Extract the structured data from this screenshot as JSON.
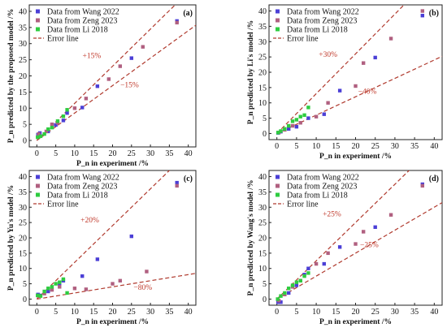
{
  "figure": {
    "title": ""
  },
  "chart_data": [
    {
      "type": "scatter",
      "panel_label": "(a)",
      "xlabel": "P_n in experiment /%",
      "ylabel": "P_n predicted by the proposed model /%",
      "xlim": [
        -2,
        42
      ],
      "ylim": [
        -2,
        42
      ],
      "xticks": [
        0,
        5,
        10,
        15,
        20,
        25,
        30,
        35,
        40
      ],
      "yticks": [
        0,
        5,
        10,
        15,
        20,
        25,
        30,
        35,
        40
      ],
      "legend_position": "top-left",
      "series": [
        {
          "name": "Data from Wang 2022",
          "color": "#4b3fd6",
          "points": [
            [
              0.3,
              1.8
            ],
            [
              0.8,
              2.3
            ],
            [
              3,
              2.8
            ],
            [
              5,
              4.8
            ],
            [
              7,
              6.2
            ],
            [
              8,
              8.5
            ],
            [
              12,
              10.2
            ],
            [
              16,
              16.8
            ],
            [
              25,
              25.5
            ],
            [
              37,
              37
            ]
          ]
        },
        {
          "name": "Data from Zeng 2023",
          "color": "#b06080",
          "points": [
            [
              0.5,
              2
            ],
            [
              2.5,
              2.8
            ],
            [
              4,
              5
            ],
            [
              5.5,
              5.5
            ],
            [
              10,
              10
            ],
            [
              13,
              13
            ],
            [
              19,
              19
            ],
            [
              22,
              23
            ],
            [
              28,
              29
            ],
            [
              37,
              36.5
            ]
          ]
        },
        {
          "name": "Data from Li 2018",
          "color": "#2ecc40",
          "points": [
            [
              0.2,
              1
            ],
            [
              1,
              1.3
            ],
            [
              2,
              2
            ],
            [
              3,
              3.5
            ],
            [
              4,
              4
            ],
            [
              5.5,
              6
            ],
            [
              7,
              7.5
            ],
            [
              8,
              9.5
            ]
          ]
        }
      ],
      "error_lines": {
        "name": "Error line",
        "color": "#b03a2e",
        "upper_slope": 1.15,
        "lower_slope": 0.85,
        "upper_label": "+15%",
        "lower_label": "−15%",
        "upper_label_at": [
          14.5,
          25.5
        ],
        "lower_label_at": [
          24.5,
          16.5
        ]
      }
    },
    {
      "type": "scatter",
      "panel_label": "(b)",
      "xlabel": "P_n in experiment /%",
      "ylabel": "P_n predicted by Li's model /%",
      "xlim": [
        -2,
        42
      ],
      "ylim": [
        -2,
        42
      ],
      "xticks": [
        0,
        5,
        10,
        15,
        20,
        25,
        30,
        35,
        40
      ],
      "yticks": [
        0,
        5,
        10,
        15,
        20,
        25,
        30,
        35,
        40
      ],
      "legend_position": "top-left",
      "series": [
        {
          "name": "Data from Wang 2022",
          "color": "#4b3fd6",
          "points": [
            [
              0.3,
              0.2
            ],
            [
              1,
              0.6
            ],
            [
              3,
              1.5
            ],
            [
              5,
              2.2
            ],
            [
              8,
              5
            ],
            [
              12,
              6.3
            ],
            [
              16,
              14
            ],
            [
              25,
              24.8
            ],
            [
              37,
              38.5
            ]
          ]
        },
        {
          "name": "Data from Zeng 2023",
          "color": "#b06080",
          "points": [
            [
              0.5,
              0.3
            ],
            [
              2,
              1.2
            ],
            [
              4,
              2.5
            ],
            [
              6,
              3.5
            ],
            [
              10,
              5.5
            ],
            [
              13,
              10
            ],
            [
              20,
              15.5
            ],
            [
              22,
              23
            ],
            [
              29,
              31
            ],
            [
              37,
              40
            ]
          ]
        },
        {
          "name": "Data from Li 2018",
          "color": "#2ecc40",
          "points": [
            [
              0.3,
              0.3
            ],
            [
              1,
              0.8
            ],
            [
              2,
              1.5
            ],
            [
              3,
              2.5
            ],
            [
              4,
              4
            ],
            [
              5,
              4.5
            ],
            [
              6,
              5.5
            ],
            [
              7,
              6
            ],
            [
              8,
              8.5
            ]
          ]
        }
      ],
      "error_lines": {
        "name": "Error line",
        "color": "#b03a2e",
        "upper_slope": 1.3,
        "lower_slope": 0.6,
        "upper_label": "+30%",
        "lower_label": "−40%",
        "upper_label_at": [
          13,
          25
        ],
        "lower_label_at": [
          23,
          13
        ]
      }
    },
    {
      "type": "scatter",
      "panel_label": "(c)",
      "xlabel": "P_n in experiment /%",
      "ylabel": "P_n predicted by Yu's model /%",
      "xlim": [
        -2,
        42
      ],
      "ylim": [
        -2,
        42
      ],
      "xticks": [
        0,
        5,
        10,
        15,
        20,
        25,
        30,
        35,
        40
      ],
      "yticks": [
        0,
        5,
        10,
        15,
        20,
        25,
        30,
        35,
        40
      ],
      "legend_position": "top-left",
      "series": [
        {
          "name": "Data from Wang 2022",
          "color": "#4b3fd6",
          "points": [
            [
              0.3,
              1.5
            ],
            [
              0.8,
              1.2
            ],
            [
              3,
              2.5
            ],
            [
              6,
              5
            ],
            [
              7,
              6
            ],
            [
              12,
              7.5
            ],
            [
              16,
              13
            ],
            [
              25,
              20.5
            ],
            [
              37,
              38
            ]
          ]
        },
        {
          "name": "Data from Zeng 2023",
          "color": "#b06080",
          "points": [
            [
              0.5,
              1
            ],
            [
              2,
              1.8
            ],
            [
              4,
              3
            ],
            [
              6,
              4
            ],
            [
              10,
              3.5
            ],
            [
              13,
              3.2
            ],
            [
              20,
              5
            ],
            [
              22,
              6
            ],
            [
              29,
              9
            ],
            [
              37,
              37
            ]
          ]
        },
        {
          "name": "Data from Li 2018",
          "color": "#2ecc40",
          "points": [
            [
              0.2,
              1.2
            ],
            [
              1,
              1
            ],
            [
              2,
              2.5
            ],
            [
              3,
              3.5
            ],
            [
              4,
              4
            ],
            [
              5,
              5
            ],
            [
              6,
              5.5
            ],
            [
              7,
              6.5
            ],
            [
              8,
              2
            ]
          ]
        }
      ],
      "error_lines": {
        "name": "Error line",
        "color": "#b03a2e",
        "upper_slope": 1.2,
        "lower_slope": 0.2,
        "upper_label": "+20%",
        "lower_label": "−80%",
        "upper_label_at": [
          14,
          25
        ],
        "lower_label_at": [
          28,
          3
        ]
      }
    },
    {
      "type": "scatter",
      "panel_label": "(d)",
      "xlabel": "P_n in experiment /%",
      "ylabel": "P_n predicted by Wang's model /%",
      "xlim": [
        -2,
        42
      ],
      "ylim": [
        -2,
        42
      ],
      "xticks": [
        0,
        5,
        10,
        15,
        20,
        25,
        30,
        35,
        40
      ],
      "yticks": [
        0,
        5,
        10,
        15,
        20,
        25,
        30,
        35,
        40
      ],
      "legend_position": "top-left",
      "series": [
        {
          "name": "Data from Wang 2022",
          "color": "#4b3fd6",
          "points": [
            [
              0.3,
              -1
            ],
            [
              1,
              -1
            ],
            [
              3,
              2
            ],
            [
              5,
              4.5
            ],
            [
              7,
              8
            ],
            [
              8,
              10
            ],
            [
              12,
              11.5
            ],
            [
              16,
              17
            ],
            [
              25,
              23.5
            ],
            [
              37,
              37.5
            ]
          ]
        },
        {
          "name": "Data from Zeng 2023",
          "color": "#b06080",
          "points": [
            [
              0.5,
              -0.5
            ],
            [
              2,
              1.5
            ],
            [
              4,
              4
            ],
            [
              6,
              6
            ],
            [
              10,
              11.5
            ],
            [
              13,
              15
            ],
            [
              20,
              18
            ],
            [
              22,
              22
            ],
            [
              29,
              27.5
            ],
            [
              37,
              37
            ]
          ]
        },
        {
          "name": "Data from Li 2018",
          "color": "#2ecc40",
          "points": [
            [
              0.2,
              0
            ],
            [
              1,
              1
            ],
            [
              2,
              2
            ],
            [
              3,
              3.5
            ],
            [
              4,
              4.5
            ],
            [
              5,
              5.5
            ],
            [
              6,
              6
            ],
            [
              7,
              7.5
            ],
            [
              8,
              8.5
            ]
          ]
        }
      ],
      "error_lines": {
        "name": "Error line",
        "color": "#b03a2e",
        "upper_slope": 1.25,
        "lower_slope": 0.75,
        "upper_label": "+25%",
        "lower_label": "−25%",
        "upper_label_at": [
          14,
          27
        ],
        "lower_label_at": [
          23.5,
          17
        ]
      }
    }
  ]
}
